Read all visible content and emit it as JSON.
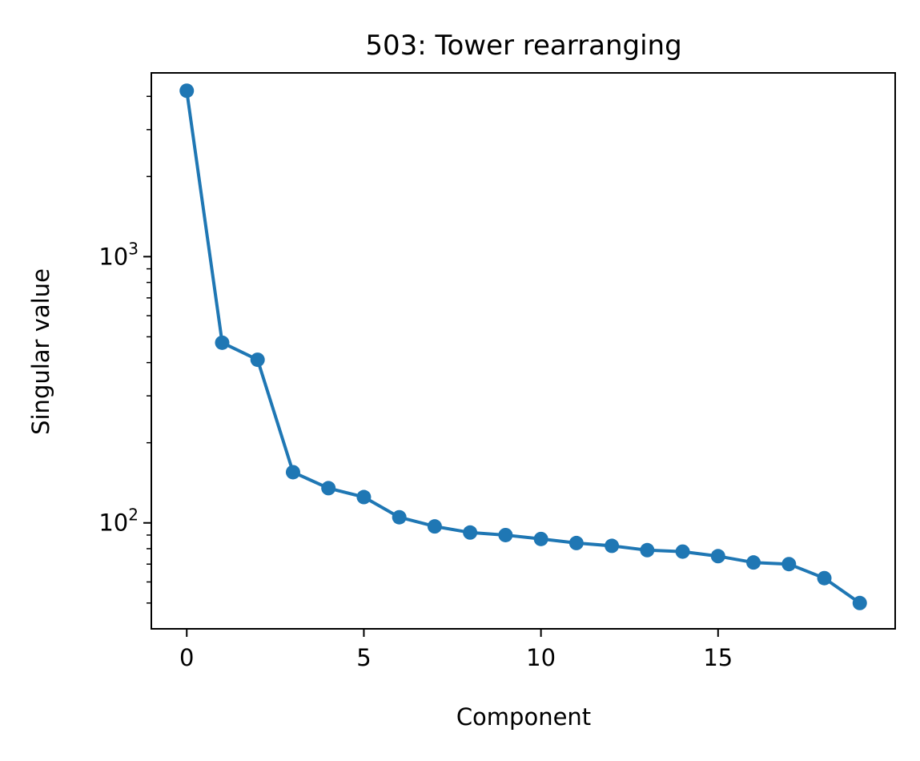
{
  "chart_data": {
    "type": "line",
    "title": "503: Tower rearranging",
    "xlabel": "Component",
    "ylabel": "Singular value",
    "y_scale": "log",
    "grid": false,
    "legend": "none",
    "xlim": [
      -1,
      20
    ],
    "ylim": [
      40,
      4900
    ],
    "x_ticks": [
      {
        "value": 0,
        "label": "0"
      },
      {
        "value": 5,
        "label": "5"
      },
      {
        "value": 10,
        "label": "10"
      },
      {
        "value": 15,
        "label": "15"
      }
    ],
    "y_ticks": [
      {
        "value": 100,
        "base": "10",
        "exp": "2"
      },
      {
        "value": 1000,
        "base": "10",
        "exp": "3"
      }
    ],
    "y_minor_ticks": [
      50,
      60,
      70,
      80,
      90,
      200,
      300,
      400,
      500,
      600,
      700,
      800,
      900,
      2000,
      3000,
      4000
    ],
    "series": [
      {
        "color": "#1f77b4",
        "x": [
          0,
          1,
          2,
          3,
          4,
          5,
          6,
          7,
          8,
          9,
          10,
          11,
          12,
          13,
          14,
          15,
          16,
          17,
          18,
          19
        ],
        "values": [
          4200,
          475,
          410,
          155,
          135,
          125,
          105,
          97,
          92,
          90,
          87,
          84,
          82,
          79,
          78,
          75,
          71,
          70,
          62,
          50
        ]
      }
    ]
  }
}
